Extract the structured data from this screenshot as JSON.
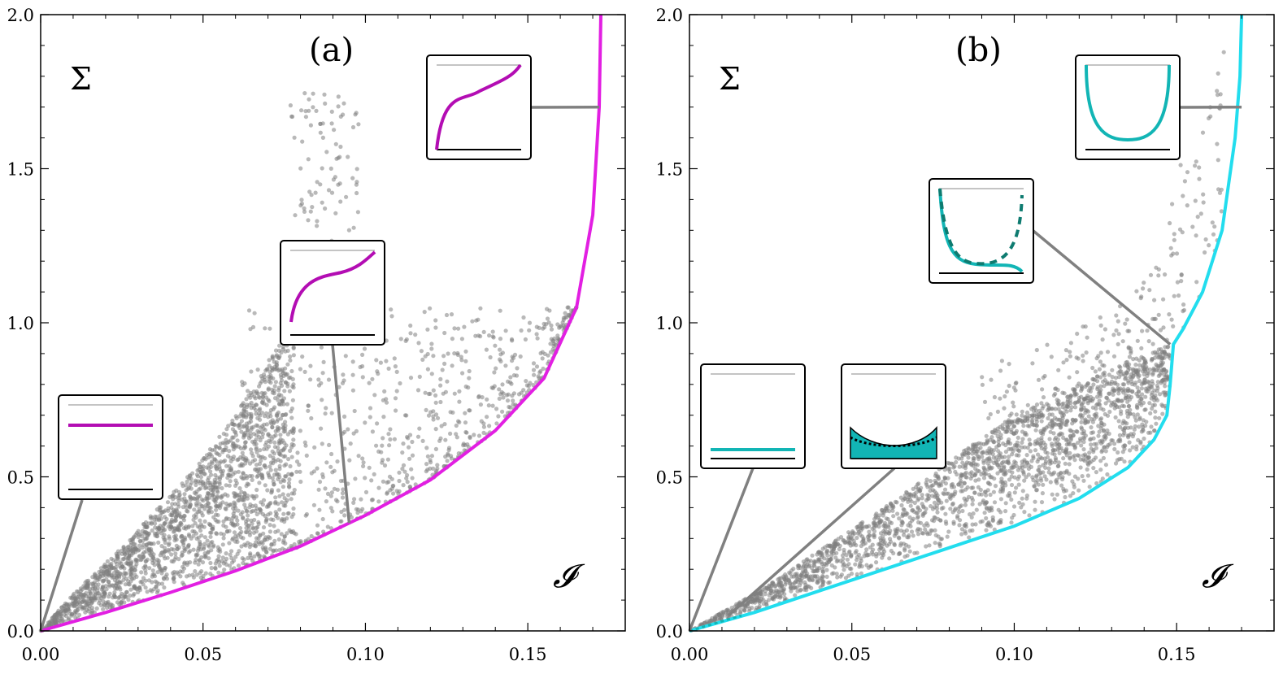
{
  "chart_data": [
    {
      "type": "scatter",
      "panel_label": "(a)",
      "xlabel": "𝓘",
      "ylabel": "Σ",
      "xlim": [
        0,
        0.18
      ],
      "ylim": [
        0,
        2.0
      ],
      "x_ticks": [
        "0.00",
        "0.05",
        "0.10",
        "0.15"
      ],
      "y_ticks": [
        "0.0",
        "0.5",
        "1.0",
        "1.5",
        "2.0"
      ],
      "boundary_color": "#e21fe2",
      "inset_curve_color": "#b30db3",
      "point_color": "#808080",
      "boundary_curve": {
        "x": [
          0,
          0.02,
          0.04,
          0.06,
          0.08,
          0.1,
          0.12,
          0.14,
          0.155,
          0.165,
          0.17,
          0.172,
          0.1725
        ],
        "y": [
          0,
          0.06,
          0.125,
          0.195,
          0.275,
          0.375,
          0.49,
          0.65,
          0.82,
          1.05,
          1.35,
          1.7,
          2.0
        ]
      },
      "scatter_upper_edge": {
        "x": [
          0,
          0.01,
          0.02,
          0.03,
          0.04,
          0.05,
          0.06,
          0.07,
          0.075
        ],
        "y": [
          0,
          0.12,
          0.22,
          0.33,
          0.44,
          0.56,
          0.7,
          0.86,
          0.98
        ]
      },
      "insets": [
        {
          "shape": "flat",
          "anchor": [
            0.0,
            0.0
          ]
        },
        {
          "shape": "sigmoid",
          "anchor": [
            0.095,
            0.35
          ]
        },
        {
          "shape": "sigmoid-steep",
          "anchor": [
            0.172,
            1.7
          ]
        }
      ]
    },
    {
      "type": "scatter",
      "panel_label": "(b)",
      "xlabel": "𝓘",
      "ylabel": "Σ",
      "xlim": [
        0,
        0.18
      ],
      "ylim": [
        0,
        2.0
      ],
      "x_ticks": [
        "0.00",
        "0.05",
        "0.10",
        "0.15"
      ],
      "y_ticks": [
        "0.0",
        "0.5",
        "1.0",
        "1.5",
        "2.0"
      ],
      "boundary_color": "#22ddee",
      "inset_curve_color": "#12b5b5",
      "inset_dash_color": "#0e7b70",
      "point_color": "#808080",
      "boundary_curve": {
        "x": [
          0,
          0.02,
          0.04,
          0.06,
          0.08,
          0.1,
          0.12,
          0.135,
          0.143,
          0.147,
          0.148,
          0.149,
          0.152,
          0.158,
          0.164,
          0.168,
          0.1695,
          0.17
        ],
        "y": [
          0,
          0.06,
          0.13,
          0.2,
          0.27,
          0.34,
          0.43,
          0.53,
          0.62,
          0.7,
          0.8,
          0.93,
          0.98,
          1.1,
          1.3,
          1.6,
          1.8,
          2.0
        ]
      },
      "scatter_upper_edge": {
        "x": [
          0,
          0.02,
          0.04,
          0.06,
          0.08,
          0.1,
          0.12,
          0.14,
          0.148
        ],
        "y": [
          0,
          0.12,
          0.26,
          0.4,
          0.55,
          0.7,
          0.8,
          0.9,
          0.93
        ]
      },
      "insets": [
        {
          "shape": "flat-line",
          "anchor": [
            0.0,
            0.0
          ]
        },
        {
          "shape": "bowl-shaded",
          "anchor": [
            0.012,
            0.05
          ]
        },
        {
          "shape": "bowl-dashed",
          "anchor": [
            0.148,
            0.93
          ]
        },
        {
          "shape": "u-bowl",
          "anchor": [
            0.17,
            1.7
          ]
        }
      ]
    }
  ]
}
